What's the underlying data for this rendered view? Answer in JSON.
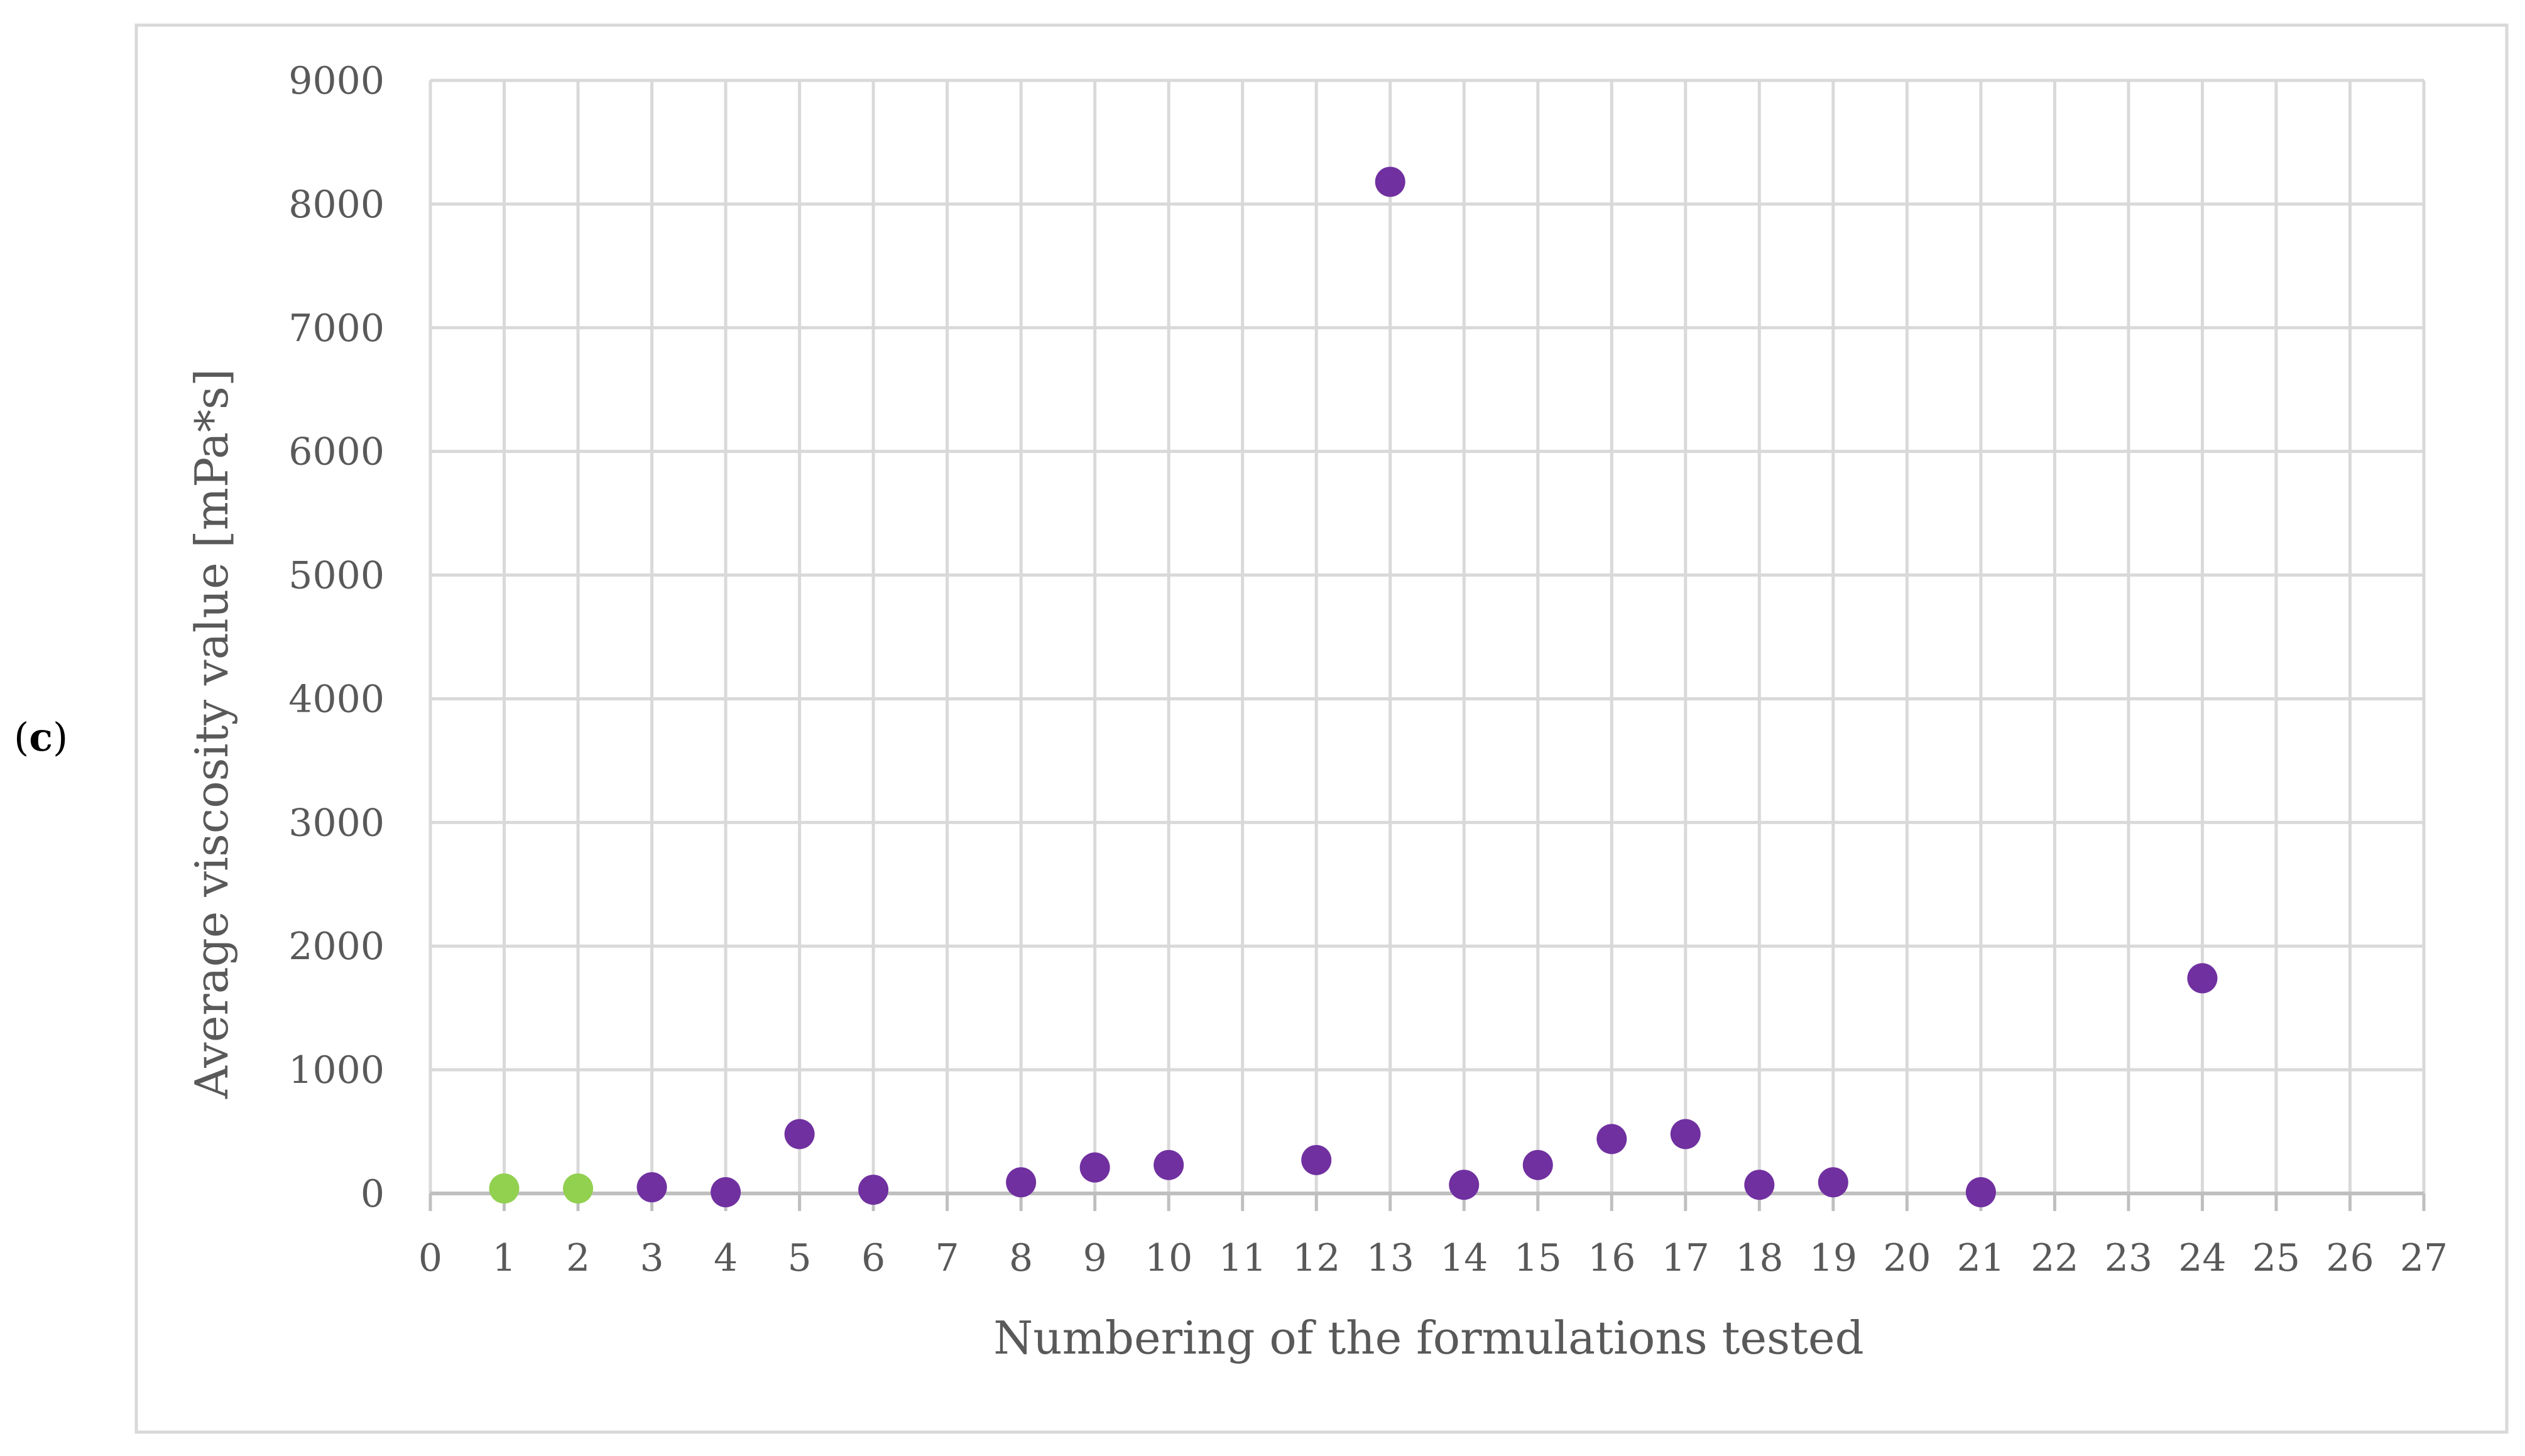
{
  "panel_label": {
    "open": "(",
    "letter": "c",
    "close": ")"
  },
  "chart_data": {
    "type": "scatter",
    "title": "",
    "xlabel": "Numbering of the formulations tested",
    "ylabel": "Average viscosity value [mPa*s]",
    "xlim": [
      0,
      27
    ],
    "ylim": [
      0,
      9000
    ],
    "x_ticks": [
      0,
      1,
      2,
      3,
      4,
      5,
      6,
      7,
      8,
      9,
      10,
      11,
      12,
      13,
      14,
      15,
      16,
      17,
      18,
      19,
      20,
      21,
      22,
      23,
      24,
      25,
      26,
      27
    ],
    "y_ticks": [
      0,
      1000,
      2000,
      3000,
      4000,
      5000,
      6000,
      7000,
      8000,
      9000
    ],
    "grid": true,
    "series": [
      {
        "color": "#92d050",
        "points": [
          {
            "x": 1,
            "y": 40
          },
          {
            "x": 2,
            "y": 40
          }
        ]
      },
      {
        "color": "#7030a0",
        "points": [
          {
            "x": 3,
            "y": 50
          },
          {
            "x": 4,
            "y": 10
          },
          {
            "x": 5,
            "y": 480
          },
          {
            "x": 6,
            "y": 30
          },
          {
            "x": 8,
            "y": 90
          },
          {
            "x": 9,
            "y": 210
          },
          {
            "x": 10,
            "y": 230
          },
          {
            "x": 12,
            "y": 270
          },
          {
            "x": 13,
            "y": 8180
          },
          {
            "x": 14,
            "y": 70
          },
          {
            "x": 15,
            "y": 230
          },
          {
            "x": 16,
            "y": 440
          },
          {
            "x": 17,
            "y": 480
          },
          {
            "x": 18,
            "y": 70
          },
          {
            "x": 19,
            "y": 90
          },
          {
            "x": 21,
            "y": 10
          },
          {
            "x": 24,
            "y": 1740
          }
        ]
      }
    ]
  }
}
